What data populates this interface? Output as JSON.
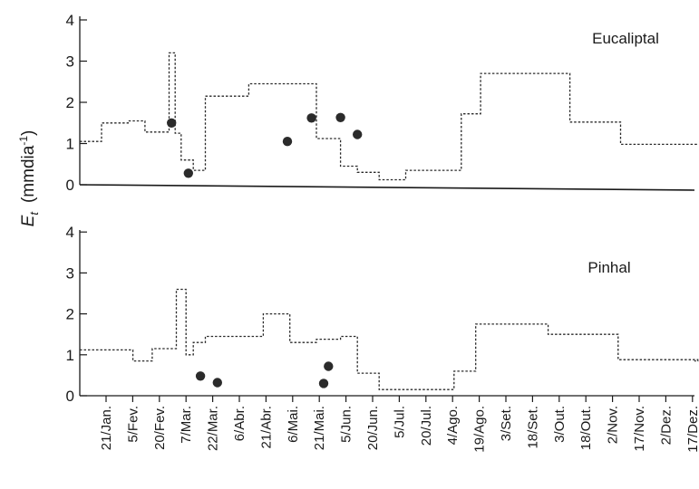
{
  "chart_data": {
    "type": "line",
    "ylabel_symbol": "E",
    "ylabel_subscript": "t",
    "ylabel_unit": "(mmdia",
    "ylabel_sup": "-1",
    "ylabel_close": ")",
    "date_labels": [
      "21/Jan.",
      "5/Fev.",
      "20/Fev.",
      "7/Mar.",
      "22/Mar.",
      "6/Abr.",
      "21/Abr.",
      "6/Mai.",
      "21/Mai.",
      "5/Jun.",
      "20/Jun.",
      "5/Jul.",
      "20/Jul.",
      "4/Ago.",
      "19/Ago.",
      "3/Set.",
      "18/Set.",
      "3/Out.",
      "18/Out.",
      "2/Nov.",
      "17/Nov.",
      "2/Dez.",
      "17/Dez."
    ],
    "panels": [
      {
        "title": "Eucaliptal",
        "ylim": [
          0,
          4
        ],
        "yticks": [
          "0",
          "1",
          "2",
          "3",
          "4"
        ],
        "step_series": [
          {
            "x": 1,
            "y": 1.05
          },
          {
            "x": 10,
            "y": 1.5
          },
          {
            "x": 21,
            "y": 1.55
          },
          {
            "x": 28,
            "y": 1.28
          },
          {
            "x": 38,
            "y": 3.2
          },
          {
            "x": 40.5,
            "y": 1.25
          },
          {
            "x": 43,
            "y": 0.6
          },
          {
            "x": 48,
            "y": 0.35
          },
          {
            "x": 53,
            "y": 2.15
          },
          {
            "x": 71,
            "y": 2.45
          },
          {
            "x": 99,
            "y": 1.12
          },
          {
            "x": 109,
            "y": 0.45
          },
          {
            "x": 116,
            "y": 0.3
          },
          {
            "x": 125,
            "y": 0.12
          },
          {
            "x": 136,
            "y": 0.35
          },
          {
            "x": 159,
            "y": 1.72
          },
          {
            "x": 167,
            "y": 2.7
          },
          {
            "x": 204,
            "y": 1.52
          },
          {
            "x": 225,
            "y": 0.98
          },
          {
            "x": 257,
            "y": 0.98
          }
        ],
        "points": [
          {
            "x": 39,
            "y": 1.5
          },
          {
            "x": 46,
            "y": 0.28
          },
          {
            "x": 87,
            "y": 1.05
          },
          {
            "x": 97,
            "y": 1.62
          },
          {
            "x": 109,
            "y": 1.63
          },
          {
            "x": 116,
            "y": 1.22
          }
        ]
      },
      {
        "title": "Pinhal",
        "ylim": [
          0,
          4
        ],
        "yticks": [
          "0",
          "1",
          "2",
          "3",
          "4"
        ],
        "step_series": [
          {
            "x": 1,
            "y": 1.12
          },
          {
            "x": 23,
            "y": 0.85
          },
          {
            "x": 31,
            "y": 1.15
          },
          {
            "x": 41,
            "y": 2.6
          },
          {
            "x": 45,
            "y": 1.0
          },
          {
            "x": 48,
            "y": 1.3
          },
          {
            "x": 53,
            "y": 1.45
          },
          {
            "x": 77,
            "y": 2.0
          },
          {
            "x": 88,
            "y": 1.3
          },
          {
            "x": 99,
            "y": 1.38
          },
          {
            "x": 109,
            "y": 1.45
          },
          {
            "x": 116,
            "y": 0.55
          },
          {
            "x": 125,
            "y": 0.15
          },
          {
            "x": 156,
            "y": 0.6
          },
          {
            "x": 165,
            "y": 1.75
          },
          {
            "x": 195,
            "y": 1.5
          },
          {
            "x": 224,
            "y": 0.88
          },
          {
            "x": 257,
            "y": 0.85
          }
        ],
        "points": [
          {
            "x": 51,
            "y": 0.48
          },
          {
            "x": 58,
            "y": 0.32
          },
          {
            "x": 102,
            "y": 0.3
          },
          {
            "x": 104,
            "y": 0.72
          }
        ]
      }
    ]
  }
}
